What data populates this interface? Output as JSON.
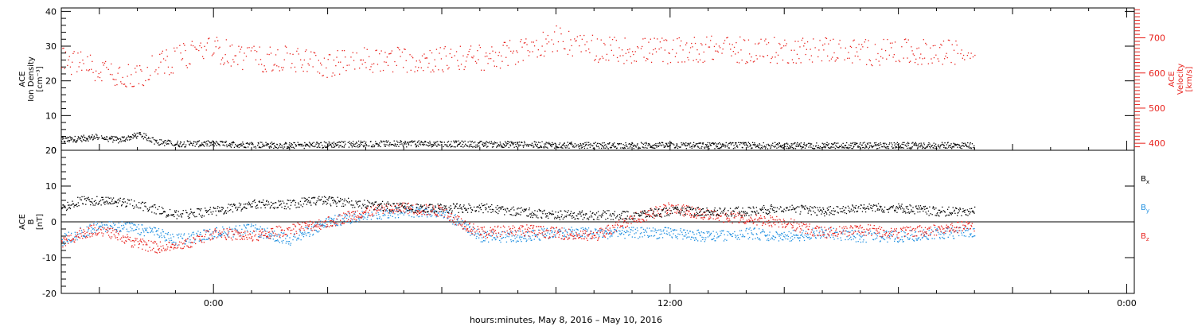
{
  "colors": {
    "black": "#000000",
    "red": "#e8231e",
    "blue": "#1e8fe0"
  },
  "xaxis": {
    "label": "hours:minutes, May  8, 2016 – May 10, 2016",
    "ticks": [
      {
        "t": 0,
        "label": "0:00"
      },
      {
        "t": 12,
        "label": "12:00"
      },
      {
        "t": 24,
        "label": "0:00"
      }
    ],
    "range_hours": [
      -4,
      24.2
    ],
    "data_end_hours": 20
  },
  "chart_data": [
    {
      "type": "scatter",
      "panel": "top",
      "left_axis": {
        "label_lines": [
          "ACE",
          "Ion Density",
          "[cm⁻³]"
        ],
        "ylim": [
          0,
          41
        ],
        "ticks": [
          0,
          10,
          20,
          30,
          40
        ],
        "tick_labels": [
          "0",
          "10",
          "20",
          "30",
          "40"
        ]
      },
      "right_axis": {
        "label_lines": [
          "ACE",
          "Velocity",
          "[km/s]"
        ],
        "ylim": [
          380,
          785
        ],
        "ticks": [
          400,
          500,
          600,
          700
        ],
        "tick_labels": [
          "400",
          "500",
          "600",
          "700"
        ]
      },
      "series": [
        {
          "axis": "left",
          "color": "black",
          "x_hours": [
            -4,
            -3.5,
            -3,
            -2.5,
            -2,
            -1.8,
            -1.5,
            -1,
            0,
            2,
            4,
            6,
            8,
            10,
            12,
            14,
            16,
            18,
            20
          ],
          "values": [
            3,
            3.5,
            4,
            3,
            4.5,
            4,
            2.5,
            2,
            2,
            1.5,
            2,
            2,
            1.8,
            1.5,
            1.5,
            1.5,
            1.5,
            1.5,
            1.5
          ]
        },
        {
          "axis": "right",
          "color": "red",
          "x_hours": [
            -4,
            -3.5,
            -3,
            -2.5,
            -2,
            -1.5,
            -1,
            -0.5,
            0,
            1,
            2,
            3,
            4,
            5,
            6,
            7,
            8,
            8.5,
            9,
            9.5,
            10,
            11,
            12,
            13,
            14,
            15,
            16,
            17,
            18,
            19,
            20
          ],
          "values": [
            640,
            625,
            615,
            600,
            590,
            620,
            640,
            660,
            670,
            640,
            640,
            625,
            640,
            640,
            640,
            645,
            660,
            680,
            700,
            680,
            670,
            665,
            665,
            670,
            665,
            665,
            670,
            660,
            660,
            660,
            655
          ]
        }
      ]
    },
    {
      "type": "scatter",
      "panel": "bottom",
      "left_axis": {
        "label_lines": [
          "ACE",
          "B",
          "[nT]"
        ],
        "ylim": [
          -20,
          20
        ],
        "ticks": [
          -20,
          -10,
          0,
          10,
          20
        ],
        "tick_labels": [
          "-20",
          "-10",
          "0",
          "10",
          "20"
        ],
        "zero_line": true
      },
      "series": [
        {
          "name": "Bx",
          "color": "black",
          "x_hours": [
            -4,
            -3.5,
            -3,
            -2,
            -1,
            0,
            1,
            2,
            2.5,
            3,
            4,
            5,
            6,
            7,
            8,
            9,
            10,
            11,
            12,
            13,
            14,
            15,
            16,
            17,
            18,
            19,
            20
          ],
          "values": [
            4,
            6,
            6,
            5,
            2,
            3,
            5,
            5,
            6,
            6,
            5,
            4,
            4,
            4,
            3,
            2,
            2,
            2,
            3,
            3,
            3,
            4,
            3,
            4,
            4,
            3,
            3
          ]
        },
        {
          "name": "By",
          "color": "blue",
          "x_hours": [
            -4,
            -3.5,
            -3,
            -2.5,
            -2,
            -1.5,
            -1,
            -0.5,
            0,
            1,
            2,
            3,
            4,
            5,
            6,
            7,
            8,
            9,
            10,
            11,
            12,
            13,
            14,
            15,
            16,
            17,
            18,
            19,
            20
          ],
          "values": [
            -5,
            -3,
            -1,
            -1,
            -2,
            -3,
            -5,
            -4,
            -3,
            -2,
            -5,
            0,
            2,
            3,
            3,
            -4,
            -4,
            -3,
            -3,
            -3,
            -3,
            -4,
            -3,
            -4,
            -3,
            -4,
            -4,
            -3,
            -3
          ]
        },
        {
          "name": "Bz",
          "color": "red",
          "x_hours": [
            -4,
            -3.5,
            -3,
            -2.5,
            -2,
            -1.5,
            -1,
            -0.5,
            0,
            1,
            2,
            3,
            4,
            5,
            6,
            7,
            8,
            9,
            10,
            11,
            12,
            13,
            14,
            15,
            16,
            17,
            18,
            19,
            20
          ],
          "values": [
            -6,
            -3,
            -2,
            -4,
            -6,
            -7,
            -7,
            -5,
            -3,
            -4,
            -2,
            0,
            3,
            4,
            3,
            -3,
            -2,
            -3,
            -4,
            1,
            4,
            2,
            1,
            0,
            -3,
            -2,
            -3,
            -2,
            -1
          ]
        }
      ],
      "legend": {
        "placement": "right",
        "entries": [
          {
            "label": "B",
            "sub": "x",
            "color": "black"
          },
          {
            "label": "B",
            "sub": "y",
            "color": "blue"
          },
          {
            "label": "B",
            "sub": "z",
            "color": "red"
          }
        ]
      }
    }
  ]
}
